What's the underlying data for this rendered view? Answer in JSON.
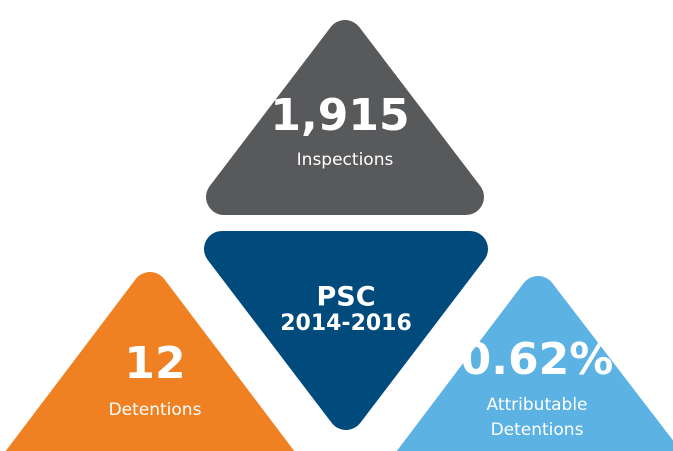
{
  "center": {
    "title": "PSC",
    "subtitle": "2014-2016"
  },
  "tiles": [
    {
      "value": "1,915",
      "lines": [
        "Inspections"
      ]
    },
    {
      "value": "12",
      "lines": [
        "Detentions"
      ]
    },
    {
      "value": "0.62%",
      "lines": [
        "Attributable",
        "Detentions"
      ]
    }
  ]
}
